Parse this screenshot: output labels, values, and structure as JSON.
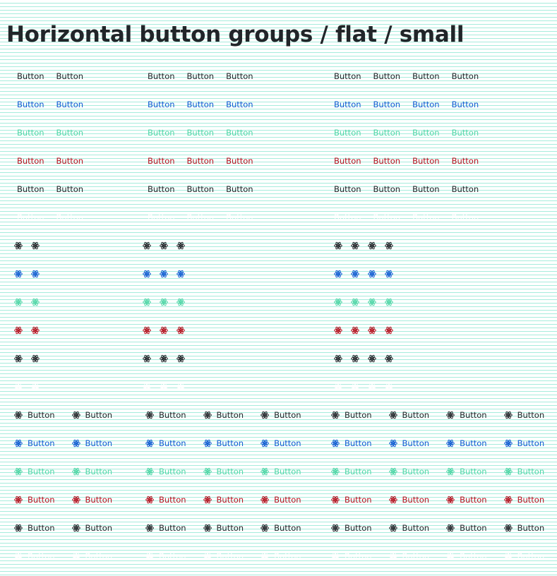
{
  "page": {
    "title": "Horizontal button groups / flat / small"
  },
  "button_label": "Button",
  "variants": [
    {
      "id": "dark",
      "color": "#212529"
    },
    {
      "id": "primary",
      "color": "#0d5bd1"
    },
    {
      "id": "success",
      "color": "#4ed6a6"
    },
    {
      "id": "danger",
      "color": "#b3121f"
    },
    {
      "id": "default",
      "color": "#212529"
    },
    {
      "id": "light",
      "color": "#ffffff"
    }
  ],
  "group_sizes": [
    2,
    3,
    4
  ],
  "sections": [
    {
      "id": "text",
      "icon": ""
    },
    {
      "id": "icon",
      "icon": "atom-icon"
    },
    {
      "id": "icon-text",
      "icon": "atom-icon"
    }
  ]
}
